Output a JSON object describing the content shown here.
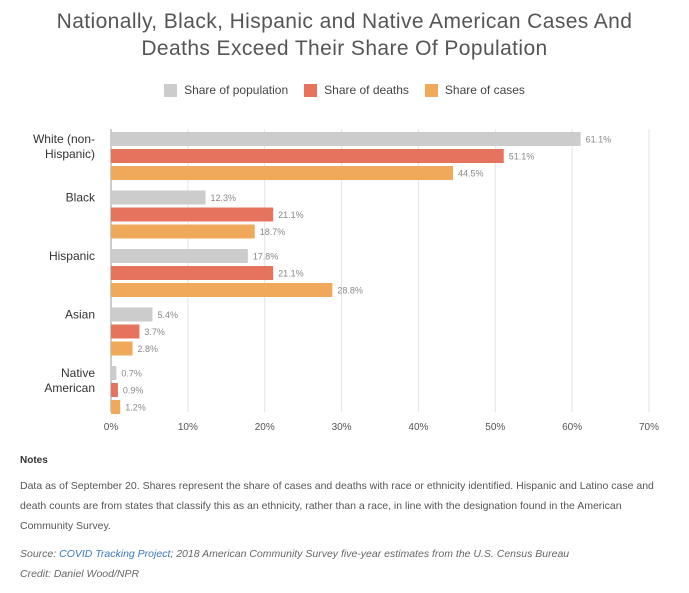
{
  "title_line1": "Nationally, Black, Hispanic and Native American Cases And",
  "title_line2": "Deaths Exceed Their Share Of Population",
  "legend": [
    {
      "label": "Share of population",
      "color": "#cccccc"
    },
    {
      "label": "Share of deaths",
      "color": "#e5735e"
    },
    {
      "label": "Share of cases",
      "color": "#f0a95a"
    }
  ],
  "chart_data": {
    "type": "bar",
    "orientation": "horizontal",
    "categories": [
      [
        "White (non-",
        "Hispanic)"
      ],
      [
        "Black"
      ],
      [
        "Hispanic"
      ],
      [
        "Asian"
      ],
      [
        "Native",
        "American"
      ]
    ],
    "series": [
      {
        "name": "Share of population",
        "color": "#cccccc",
        "values": [
          61.1,
          12.3,
          17.8,
          5.4,
          0.7
        ]
      },
      {
        "name": "Share of deaths",
        "color": "#e5735e",
        "values": [
          51.1,
          21.1,
          21.1,
          3.7,
          0.9
        ]
      },
      {
        "name": "Share of cases",
        "color": "#f0a95a",
        "values": [
          44.5,
          18.7,
          28.8,
          2.8,
          1.2
        ]
      }
    ],
    "xlim": [
      0,
      70
    ],
    "xticks": [
      "0%",
      "10%",
      "20%",
      "30%",
      "40%",
      "50%",
      "60%",
      "70%"
    ],
    "grid": true,
    "legend_position": "top"
  },
  "notes": {
    "heading": "Notes",
    "text": "Data as of September 20. Shares represent the share of cases and deaths with race or ethnicity identified. Hispanic and Latino case and death counts are from states that classify this as an ethnicity, rather than a race, in line with the designation found in the American Community Survey."
  },
  "source": {
    "prefix": "Source: ",
    "link": "COVID Tracking Project",
    "suffix": "; 2018 American Community Survey five-year estimates from the U.S. Census Bureau"
  },
  "credit": "Credit: Daniel Wood/NPR"
}
